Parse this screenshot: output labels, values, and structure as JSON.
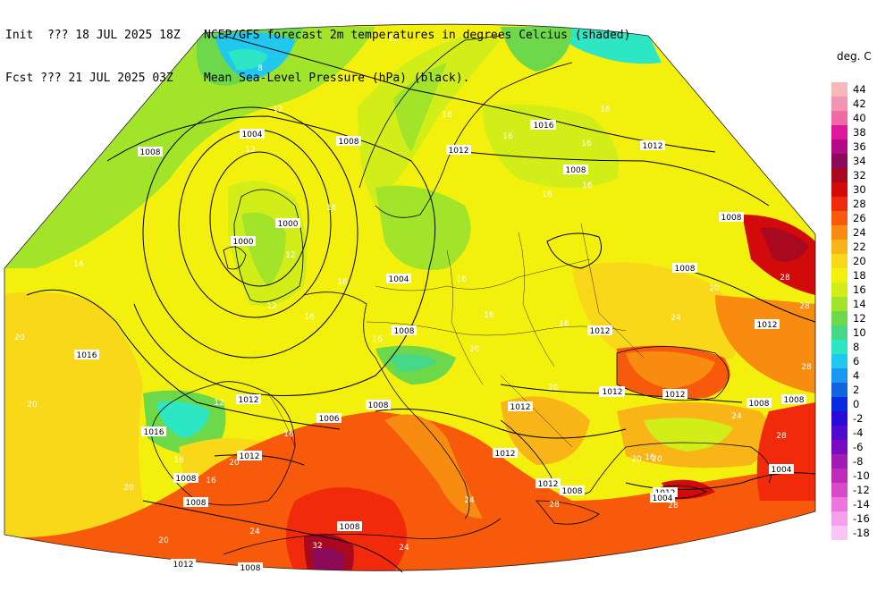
{
  "header": {
    "line1_left": "Init  ??? 18 JUL 2025 18Z",
    "line1_right": "NCEP/GFS forecast 2m temperatures in degrees Celcius (shaded)",
    "line2_left": "Fcst ??? 21 JUL 2025 03Z",
    "line2_right": "Mean Sea-Level Pressure (hPa) (black)."
  },
  "legend": {
    "unit": "deg. C",
    "items": [
      {
        "label": "44",
        "color": "#f6b8b8"
      },
      {
        "label": "42",
        "color": "#f394b4"
      },
      {
        "label": "40",
        "color": "#f06aa8"
      },
      {
        "label": "38",
        "color": "#e0169c"
      },
      {
        "label": "36",
        "color": "#b40a8a"
      },
      {
        "label": "34",
        "color": "#8c0a5a"
      },
      {
        "label": "32",
        "color": "#a80820"
      },
      {
        "label": "30",
        "color": "#d20a0a"
      },
      {
        "label": "28",
        "color": "#f02a0a"
      },
      {
        "label": "26",
        "color": "#f75a0a"
      },
      {
        "label": "24",
        "color": "#f88c10"
      },
      {
        "label": "22",
        "color": "#f9b418"
      },
      {
        "label": "20",
        "color": "#f8d818"
      },
      {
        "label": "18",
        "color": "#f4f00e"
      },
      {
        "label": "16",
        "color": "#d2ee18"
      },
      {
        "label": "14",
        "color": "#a2e42a"
      },
      {
        "label": "12",
        "color": "#6cd84a"
      },
      {
        "label": "10",
        "color": "#44d888"
      },
      {
        "label": "8",
        "color": "#2ce6c4"
      },
      {
        "label": "6",
        "color": "#20c8ee"
      },
      {
        "label": "4",
        "color": "#1a98f0"
      },
      {
        "label": "2",
        "color": "#1064e0"
      },
      {
        "label": "0",
        "color": "#0a2ae0"
      },
      {
        "label": "-2",
        "color": "#2a0ad8"
      },
      {
        "label": "-4",
        "color": "#500ad0"
      },
      {
        "label": "-6",
        "color": "#7a0ac0"
      },
      {
        "label": "-8",
        "color": "#a01ab4"
      },
      {
        "label": "-10",
        "color": "#c02ab8"
      },
      {
        "label": "-12",
        "color": "#d84ac8"
      },
      {
        "label": "-14",
        "color": "#ec74dc"
      },
      {
        "label": "-16",
        "color": "#f4a0ec"
      },
      {
        "label": "-18",
        "color": "#fac4f6"
      }
    ]
  },
  "pressure_labels": [
    "1004",
    "1008",
    "1008",
    "1012",
    "1016",
    "1008",
    "1016",
    "1012",
    "1008",
    "1000",
    "1000",
    "1004",
    "1008",
    "1008",
    "1016",
    "1012",
    "1012",
    "1006",
    "1008",
    "1016",
    "1012",
    "1008",
    "1008",
    "1012",
    "1012",
    "1008",
    "1012",
    "1008",
    "1008",
    "1012",
    "1012",
    "1004",
    "1008",
    "1012",
    "1004",
    "1008",
    "1008",
    "1012",
    "1012",
    "1012",
    "1012"
  ],
  "temp_labels": [
    "12",
    "8",
    "12",
    "12",
    "16",
    "16",
    "16",
    "16",
    "16",
    "16",
    "16",
    "12",
    "12",
    "16",
    "16",
    "16",
    "16",
    "16",
    "16",
    "16",
    "20",
    "20",
    "16",
    "20",
    "20",
    "12",
    "16",
    "16",
    "20",
    "20",
    "20",
    "20",
    "24",
    "24",
    "24",
    "24",
    "28",
    "28",
    "28",
    "24",
    "28",
    "28",
    "28",
    "16",
    "20",
    "20",
    "32"
  ]
}
